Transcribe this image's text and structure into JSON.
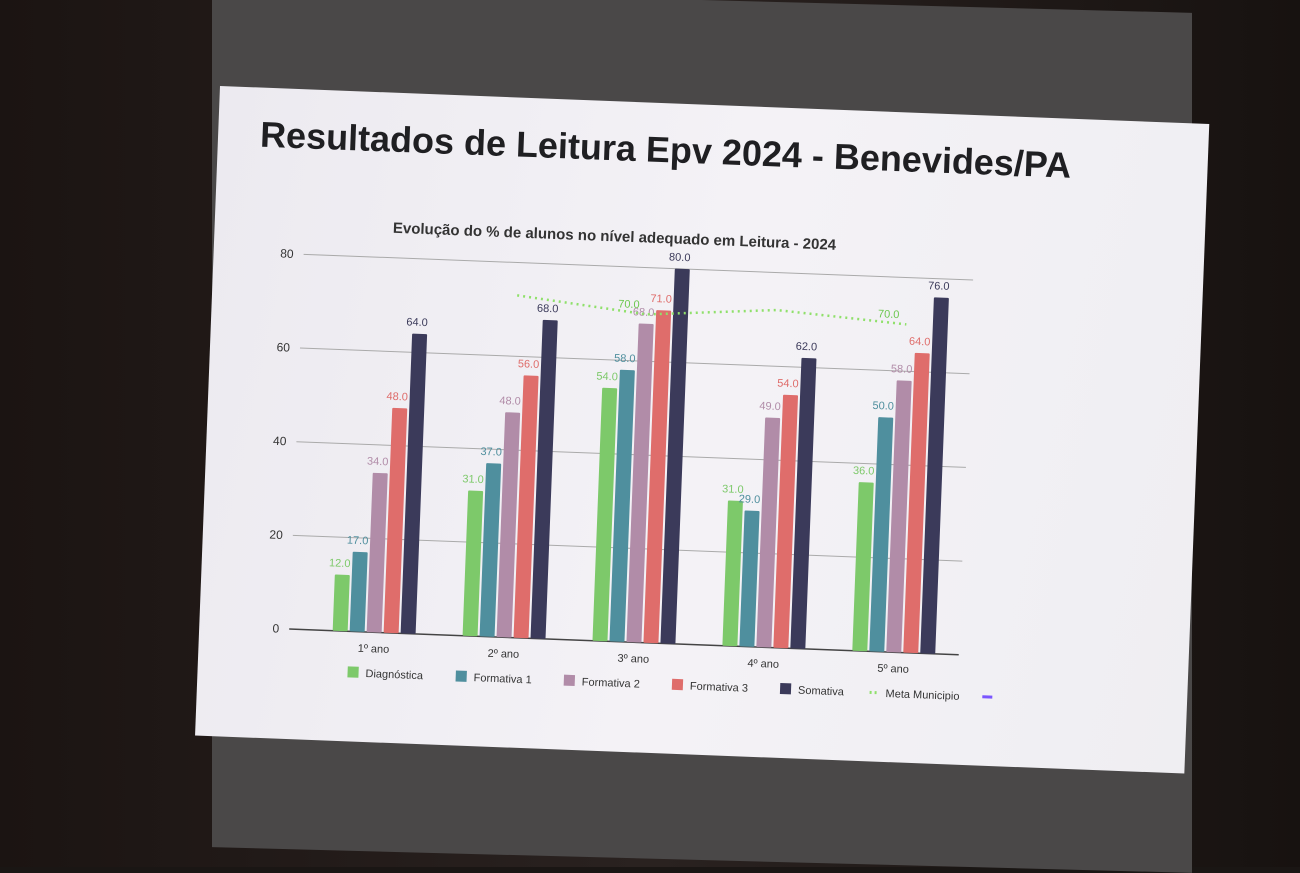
{
  "slide_title": "Resultados de Leitura Epv 2024 - Benevides/PA",
  "chart_data": {
    "type": "bar",
    "title": "Evolução do % de alunos no nível adequado em Leitura - 2024",
    "xlabel": "",
    "ylabel": "",
    "ylim": [
      0,
      80
    ],
    "yticks": [
      0,
      20,
      40,
      60,
      80
    ],
    "grid": true,
    "legend": "bottom",
    "categories": [
      "1º ano",
      "2º ano",
      "3º ano",
      "4º ano",
      "5º ano"
    ],
    "series": [
      {
        "name": "Diagnóstica",
        "color": "#7dc96a",
        "values": [
          12.0,
          31.0,
          54.0,
          31.0,
          36.0
        ]
      },
      {
        "name": "Formativa 1",
        "color": "#4f8f9e",
        "values": [
          17.0,
          37.0,
          58.0,
          29.0,
          50.0
        ]
      },
      {
        "name": "Formativa 2",
        "color": "#b18ca8",
        "values": [
          34.0,
          48.0,
          68.0,
          49.0,
          58.0
        ]
      },
      {
        "name": "Formativa 3",
        "color": "#df6d6b",
        "values": [
          48.0,
          56.0,
          71.0,
          54.0,
          64.0
        ]
      },
      {
        "name": "Somativa",
        "color": "#3b3a5a",
        "values": [
          64.0,
          68.0,
          80.0,
          62.0,
          76.0
        ]
      }
    ],
    "line_series": {
      "name": "Meta Municipio",
      "color": "#8fe06a",
      "style": "dotted",
      "values": [
        null,
        73.0,
        70.0,
        72.0,
        70.0
      ],
      "labels": [
        null,
        null,
        "70.0",
        null,
        "70.0"
      ]
    },
    "extra_legend": {
      "name": "",
      "color": "#7a55ff"
    }
  }
}
